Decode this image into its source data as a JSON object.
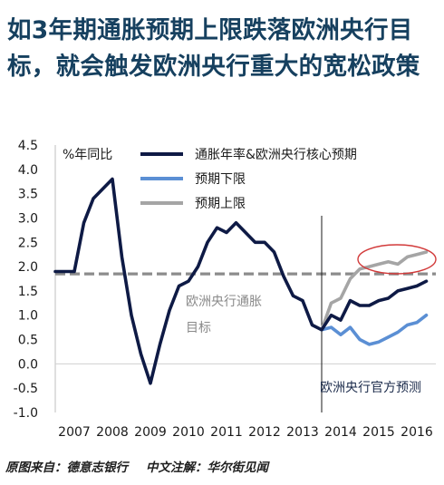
{
  "title_lines": [
    "如3年期通胀预期上限跌落欧洲央行目",
    "标，就会触发欧洲央行重大的宽松政策"
  ],
  "source": {
    "left": "原图来自：德意志银行",
    "right": "中文注解：华尔街见闻"
  },
  "colors": {
    "title": "#16405f",
    "inflation": "#0e1a45",
    "lower": "#5b8fd4",
    "upper": "#a5a5a5",
    "target": "#8c8c8c",
    "circle": "#d23a3a"
  },
  "chart_data": {
    "type": "line",
    "ylabel": "%年同比",
    "ylim": [
      -1.0,
      4.5
    ],
    "yticks": [
      "4.5",
      "4.0",
      "3.5",
      "3.0",
      "2.5",
      "2.0",
      "1.5",
      "1.0",
      "0.5",
      "0.0",
      "-0.5",
      "-1.0"
    ],
    "yticks_values": [
      4.5,
      4.0,
      3.5,
      3.0,
      2.5,
      2.0,
      1.5,
      1.0,
      0.5,
      0.0,
      -0.5,
      -1.0
    ],
    "xlim": [
      2007.0,
      2017.0
    ],
    "xticks": [
      "2007",
      "2008",
      "2009",
      "2010",
      "2011",
      "2012",
      "2013",
      "2014",
      "2015",
      "2016"
    ],
    "xticks_values": [
      2007.0,
      2008.0,
      2009.0,
      2010.0,
      2011.0,
      2012.0,
      2013.0,
      2014.0,
      2015.0,
      2016.0
    ],
    "legend": [
      "通胀年率&欧洲央行核心预期",
      "预期下限",
      "预期上限"
    ],
    "series": [
      {
        "name": "通胀年率&欧洲央行核心预期",
        "color": "#0e1a45",
        "x": [
          2007.0,
          2007.5,
          2007.75,
          2008.0,
          2008.5,
          2008.75,
          2009.0,
          2009.25,
          2009.5,
          2009.75,
          2010.0,
          2010.25,
          2010.5,
          2010.75,
          2011.0,
          2011.25,
          2011.5,
          2011.75,
          2012.0,
          2012.25,
          2012.5,
          2012.75,
          2013.0,
          2013.25,
          2013.5,
          2013.75,
          2014.0,
          2014.25,
          2014.5,
          2014.75,
          2015.0,
          2015.25,
          2015.5,
          2015.75,
          2016.0,
          2016.25,
          2016.5,
          2016.75
        ],
        "y": [
          1.9,
          1.9,
          2.9,
          3.4,
          3.8,
          2.2,
          1.0,
          0.2,
          -0.4,
          0.4,
          1.1,
          1.6,
          1.7,
          2.0,
          2.5,
          2.8,
          2.7,
          2.9,
          2.7,
          2.5,
          2.5,
          2.3,
          1.8,
          1.4,
          1.3,
          0.8,
          0.7,
          1.0,
          0.9,
          1.3,
          1.2,
          1.2,
          1.3,
          1.35,
          1.5,
          1.55,
          1.6,
          1.7
        ]
      },
      {
        "name": "预期下限",
        "color": "#5b8fd4",
        "x": [
          2014.0,
          2014.25,
          2014.5,
          2014.75,
          2015.0,
          2015.25,
          2015.5,
          2015.75,
          2016.0,
          2016.25,
          2016.5,
          2016.75
        ],
        "y": [
          0.7,
          0.75,
          0.6,
          0.75,
          0.5,
          0.4,
          0.45,
          0.55,
          0.65,
          0.8,
          0.85,
          1.0
        ]
      },
      {
        "name": "预期上限",
        "color": "#a5a5a5",
        "x": [
          2014.0,
          2014.25,
          2014.5,
          2014.75,
          2015.0,
          2015.25,
          2015.5,
          2015.75,
          2016.0,
          2016.25,
          2016.5,
          2016.75
        ],
        "y": [
          0.7,
          1.25,
          1.35,
          1.75,
          1.95,
          2.0,
          2.05,
          2.1,
          2.05,
          2.2,
          2.25,
          2.3
        ]
      }
    ],
    "target_line": {
      "y": 1.85,
      "label_line1": "欧洲央行通胀",
      "label_line2": "目标"
    },
    "forecast_start": 2014.0,
    "forecast_label": "欧洲央行官方预测",
    "highlight": "预期上限"
  }
}
